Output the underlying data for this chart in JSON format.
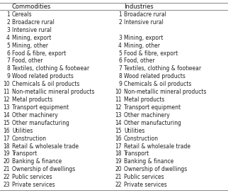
{
  "col_headers": [
    "Commodities",
    "Industries"
  ],
  "commodities": [
    [
      1,
      "Cereals"
    ],
    [
      2,
      "Broadacre rural"
    ],
    [
      3,
      "Intensive rural"
    ],
    [
      4,
      "Mining, export"
    ],
    [
      5,
      "Mining, other"
    ],
    [
      6,
      "Food & fibre, export"
    ],
    [
      7,
      "Food, other"
    ],
    [
      8,
      "Textiles, clothing & footwear"
    ],
    [
      9,
      "Wood related products"
    ],
    [
      10,
      "Chemicals & oil products"
    ],
    [
      11,
      "Non-metallic mineral products"
    ],
    [
      12,
      "Metal products"
    ],
    [
      13,
      "Transport equipment"
    ],
    [
      14,
      "Other machinery"
    ],
    [
      15,
      "Other manufacturing"
    ],
    [
      16,
      "Utilities"
    ],
    [
      17,
      "Construction"
    ],
    [
      18,
      "Retail & wholesale trade"
    ],
    [
      19,
      "Transport"
    ],
    [
      20,
      "Banking & finance"
    ],
    [
      21,
      "Ownership of dwellings"
    ],
    [
      22,
      "Public services"
    ],
    [
      23,
      "Private services"
    ]
  ],
  "industries": [
    [
      1,
      "Broadacre rural"
    ],
    [
      2,
      "Intensive rural"
    ],
    [
      null,
      ""
    ],
    [
      3,
      "Mining, export"
    ],
    [
      4,
      "Mining, other"
    ],
    [
      5,
      "Food & fibre, export"
    ],
    [
      6,
      "Food, other"
    ],
    [
      7,
      "Textiles, clothing & footwear"
    ],
    [
      8,
      "Wood related products"
    ],
    [
      9,
      "Chemicals & oil products"
    ],
    [
      10,
      "Non-metallic mineral products"
    ],
    [
      11,
      "Metal products"
    ],
    [
      12,
      "Transport equipment"
    ],
    [
      13,
      "Other machinery"
    ],
    [
      14,
      "Other manufacturing"
    ],
    [
      15,
      "Utilities"
    ],
    [
      16,
      "Construction"
    ],
    [
      17,
      "Retail & wholesale trade"
    ],
    [
      18,
      "Transport"
    ],
    [
      19,
      "Banking & finance"
    ],
    [
      20,
      "Ownership of dwellings"
    ],
    [
      21,
      "Public services"
    ],
    [
      22,
      "Private services"
    ]
  ],
  "bg_color": "#ffffff",
  "text_color": "#222222",
  "header_color": "#111111",
  "font_size": 5.5,
  "header_font_size": 6.0,
  "line_color": "#888888"
}
